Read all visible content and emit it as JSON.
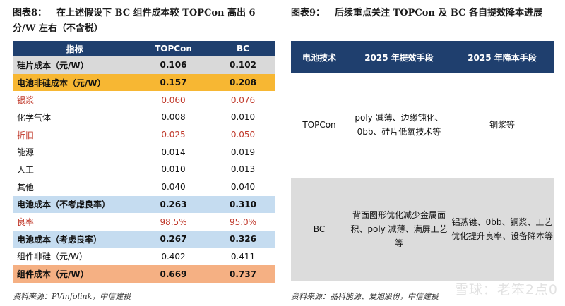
{
  "left": {
    "fig_num": "图表8：",
    "fig_title": "在上述假设下 BC 组件成本较 TOPCon 高出 6 分/W 左右（不含税）",
    "headers": [
      "指标",
      "TOPCon",
      "BC"
    ],
    "rows": [
      {
        "label": "硅片成本（元/W）",
        "topcon": "0.106",
        "bc": "0.102",
        "style": "hl-grey",
        "red": false
      },
      {
        "label": "电池非硅成本（元/W）",
        "topcon": "0.157",
        "bc": "0.208",
        "style": "hl-gold",
        "red": false
      },
      {
        "label": "银浆",
        "topcon": "0.060",
        "bc": "0.076",
        "style": "",
        "red": true
      },
      {
        "label": "化学气体",
        "topcon": "0.008",
        "bc": "0.010",
        "style": "",
        "red": false
      },
      {
        "label": "折旧",
        "topcon": "0.025",
        "bc": "0.050",
        "style": "",
        "red": true
      },
      {
        "label": "能源",
        "topcon": "0.014",
        "bc": "0.019",
        "style": "",
        "red": false
      },
      {
        "label": "人工",
        "topcon": "0.010",
        "bc": "0.013",
        "style": "",
        "red": false
      },
      {
        "label": "其他",
        "topcon": "0.040",
        "bc": "0.040",
        "style": "",
        "red": false
      },
      {
        "label": "电池成本（不考虑良率）",
        "topcon": "0.263",
        "bc": "0.310",
        "style": "hl-blue",
        "red": false
      },
      {
        "label": "良率",
        "topcon": "98.5%",
        "bc": "95.0%",
        "style": "",
        "red": true
      },
      {
        "label": "电池成本（考虑良率）",
        "topcon": "0.267",
        "bc": "0.326",
        "style": "hl-blue",
        "red": false
      },
      {
        "label": "组件非硅（元/W）",
        "topcon": "0.402",
        "bc": "0.411",
        "style": "",
        "red": false
      },
      {
        "label": "组件成本（元/W）",
        "topcon": "0.669",
        "bc": "0.737",
        "style": "hl-orange",
        "red": false
      }
    ],
    "source": "资料来源：PVinfolink，中信建投"
  },
  "right": {
    "fig_num": "图表9：",
    "fig_title": "后续重点关注 TOPCon 及 BC 各自提效降本进展",
    "headers": [
      "电池技术",
      "2025 年提效手段",
      "2025 年降本手段"
    ],
    "rows": [
      {
        "tech": "TOPCon",
        "efficiency": "poly 减薄、边缘钝化、0bb、硅片低氧技术等",
        "cost": "铜浆等"
      },
      {
        "tech": "BC",
        "efficiency": "背面图形优化减少金属面积、poly 减薄、满屏工艺等",
        "cost": "铝蒸镀、0bb、铜浆、工艺优化提升良率、设备降本等"
      }
    ],
    "source": "资料来源：晶科能源、爱旭股份，中信建投"
  },
  "watermark": "雪球：老笨2点0"
}
